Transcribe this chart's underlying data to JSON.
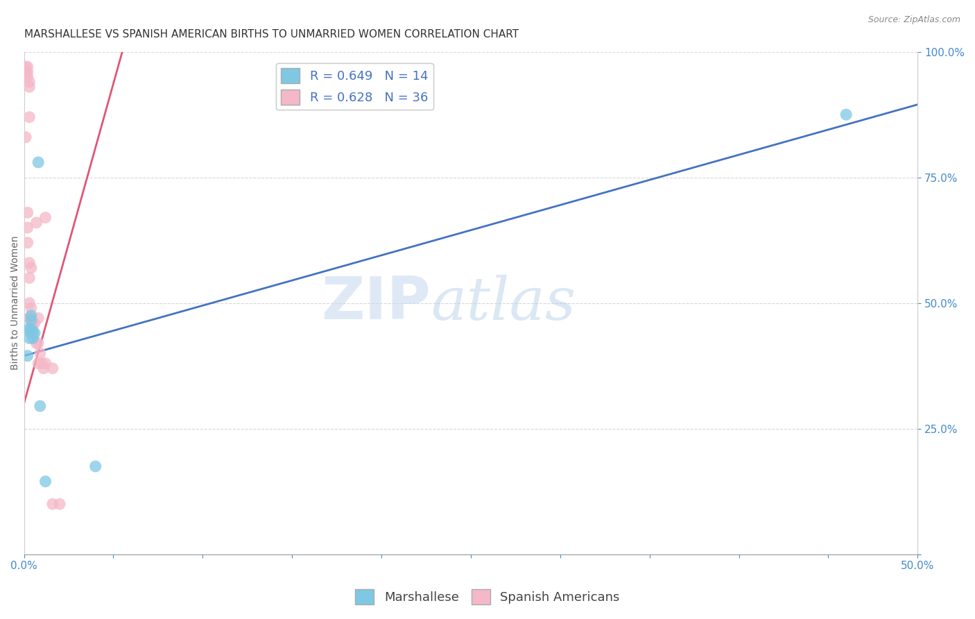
{
  "title": "MARSHALLESE VS SPANISH AMERICAN BIRTHS TO UNMARRIED WOMEN CORRELATION CHART",
  "source": "Source: ZipAtlas.com",
  "ylabel": "Births to Unmarried Women",
  "xmin": 0.0,
  "xmax": 0.5,
  "ymin": 0.0,
  "ymax": 1.0,
  "xticks": [
    0.0,
    0.05,
    0.1,
    0.15,
    0.2,
    0.25,
    0.3,
    0.35,
    0.4,
    0.45,
    0.5
  ],
  "yticks": [
    0.0,
    0.25,
    0.5,
    0.75,
    1.0
  ],
  "ytick_labels": [
    "",
    "25.0%",
    "50.0%",
    "75.0%",
    "100.0%"
  ],
  "xtick_labels": [
    "0.0%",
    "",
    "",
    "",
    "",
    "",
    "",
    "",
    "",
    "",
    "50.0%"
  ],
  "blue_R": 0.649,
  "blue_N": 14,
  "pink_R": 0.628,
  "pink_N": 36,
  "blue_color": "#7ec8e3",
  "pink_color": "#f4b8c8",
  "blue_line_color": "#4472c4",
  "pink_line_color": "#e05575",
  "legend_blue_label": "Marshallese",
  "legend_pink_label": "Spanish Americans",
  "watermark_zip": "ZIP",
  "watermark_atlas": "atlas",
  "blue_points_x": [
    0.002,
    0.003,
    0.003,
    0.003,
    0.004,
    0.004,
    0.005,
    0.005,
    0.006,
    0.008,
    0.009,
    0.012,
    0.04,
    0.46
  ],
  "blue_points_y": [
    0.395,
    0.43,
    0.445,
    0.45,
    0.465,
    0.475,
    0.445,
    0.43,
    0.44,
    0.78,
    0.295,
    0.145,
    0.175,
    0.875
  ],
  "pink_points_x": [
    0.001,
    0.001,
    0.001,
    0.002,
    0.002,
    0.002,
    0.002,
    0.002,
    0.002,
    0.003,
    0.003,
    0.003,
    0.003,
    0.003,
    0.003,
    0.003,
    0.004,
    0.004,
    0.004,
    0.004,
    0.005,
    0.005,
    0.006,
    0.007,
    0.007,
    0.008,
    0.008,
    0.008,
    0.009,
    0.01,
    0.011,
    0.012,
    0.012,
    0.016,
    0.016,
    0.02
  ],
  "pink_points_y": [
    0.97,
    0.96,
    0.83,
    0.97,
    0.96,
    0.95,
    0.62,
    0.65,
    0.68,
    0.94,
    0.93,
    0.87,
    0.55,
    0.58,
    0.5,
    0.47,
    0.47,
    0.57,
    0.44,
    0.49,
    0.46,
    0.44,
    0.46,
    0.42,
    0.66,
    0.38,
    0.42,
    0.47,
    0.4,
    0.38,
    0.37,
    0.67,
    0.38,
    0.37,
    0.1,
    0.1
  ],
  "blue_trend_x0": 0.0,
  "blue_trend_y0": 0.395,
  "blue_trend_x1": 0.5,
  "blue_trend_y1": 0.895,
  "pink_trend_x0": 0.0,
  "pink_trend_y0": 0.3,
  "pink_trend_x1": 0.055,
  "pink_trend_y1": 1.0,
  "grid_color": "#d8d8d8",
  "background_color": "#ffffff",
  "title_fontsize": 11,
  "axis_label_fontsize": 10,
  "tick_fontsize": 11,
  "tick_color": "#4488cc",
  "legend_fontsize": 13
}
